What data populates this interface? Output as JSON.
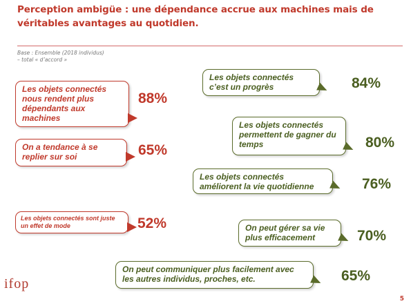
{
  "title": "Perception ambigüe : une dépendance accrue aux machines mais de véritables avantages au quotidien.",
  "base_line1": "Base :  Ensemble (2018 individus)",
  "base_line2": "– total « d’accord »",
  "left_items": [
    {
      "text": "Les objets connectés nous rendent plus dépendants aux machines",
      "value": "88%"
    },
    {
      "text": "On a tendance à se replier sur soi",
      "value": "65%"
    },
    {
      "text": "Les objets connectés sont juste un effet de mode",
      "value": "52%"
    }
  ],
  "right_items": [
    {
      "text": "Les objets connectés c’est un progrès",
      "value": "84%"
    },
    {
      "text": "Les objets connectés permettent de gagner du temps",
      "value": "80%"
    },
    {
      "text": "Les objets connectés améliorent la vie quotidienne",
      "value": "76%"
    },
    {
      "text": "On peut gérer sa vie plus efficacement",
      "value": "70%"
    },
    {
      "text": "On peut communiquer plus facilement avec les autres individus, proches, etc.",
      "value": "65%"
    }
  ],
  "logo": "ifop",
  "page_number": "5",
  "colors": {
    "negative": "#c0392b",
    "positive": "#4a5e20"
  }
}
